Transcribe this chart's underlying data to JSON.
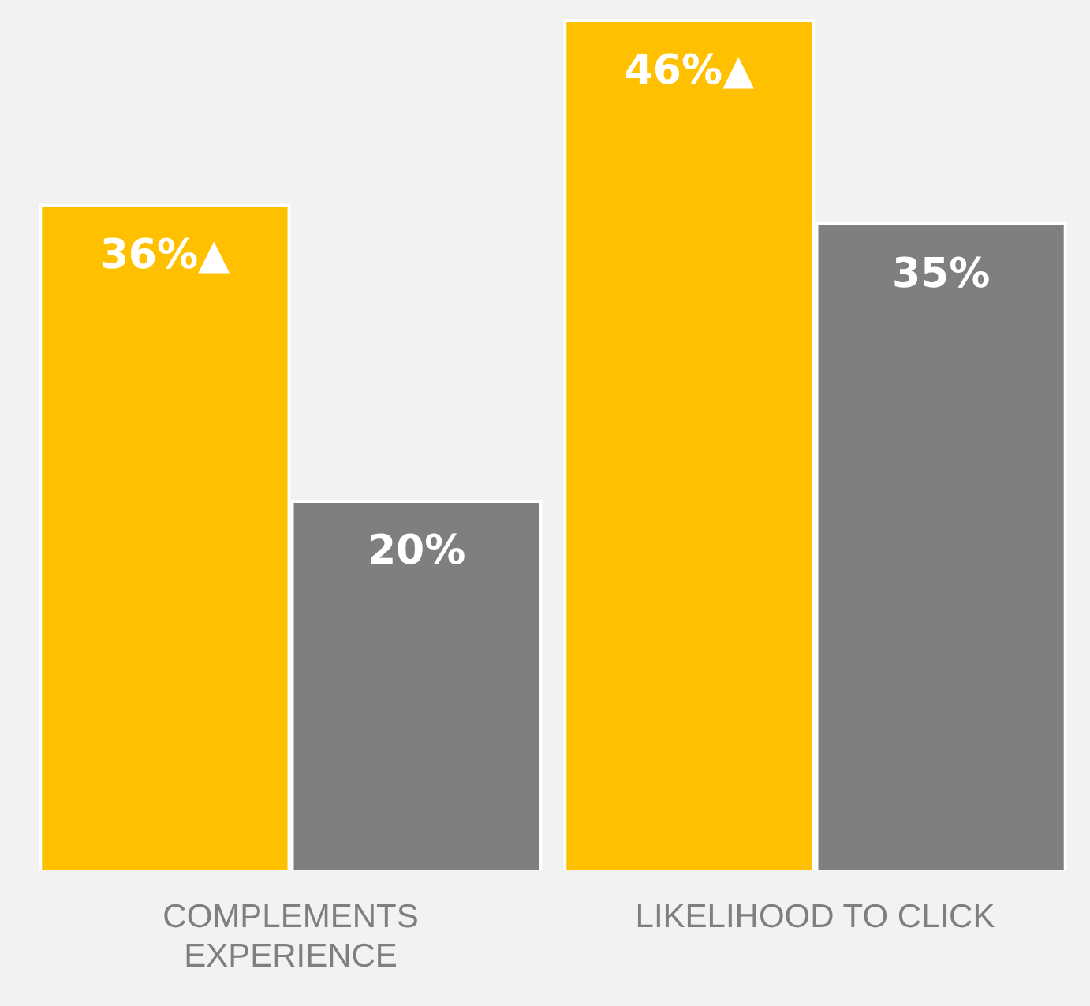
{
  "chart_data": {
    "type": "bar",
    "categories": [
      "COMPLEMENTS EXPERIENCE",
      "LIKELIHOOD TO CLICK"
    ],
    "series": [
      {
        "color": "#ffc000",
        "values": [
          36,
          46
        ],
        "value_labels": [
          "36%▲",
          "46%▲"
        ]
      },
      {
        "color": "#7f7f7f",
        "values": [
          20,
          35
        ],
        "value_labels": [
          "20%",
          "35%"
        ]
      }
    ],
    "grid": false,
    "legend": false
  }
}
